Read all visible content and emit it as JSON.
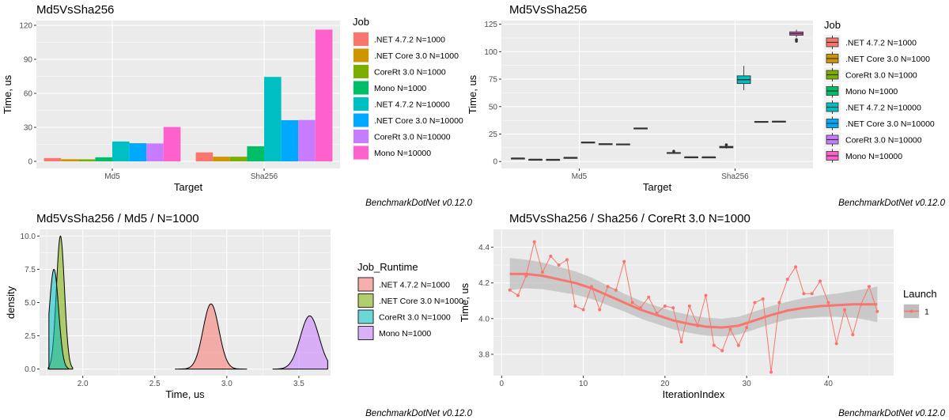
{
  "colors": {
    "panel_bg": "#ebebeb",
    "grid_major": "#ffffff",
    "jobs": [
      "#f8766d",
      "#cd9600",
      "#7cae00",
      "#00be67",
      "#00bfc4",
      "#00a9ff",
      "#c77cff",
      "#ff61cc"
    ],
    "density": [
      "#f8766d",
      "#7cae00",
      "#00bfc4",
      "#c77cff"
    ],
    "trend_line": "#f8766d",
    "trend_band": "#bebebe"
  },
  "chart_data": [
    {
      "type": "bar",
      "title": "Md5VsSha256",
      "xlabel": "Target",
      "ylabel": "Time, us",
      "categories": [
        "Md5",
        "Sha256"
      ],
      "ylim": [
        0,
        120
      ],
      "yticks": [
        0,
        30,
        60,
        90,
        120
      ],
      "legend_title": "Job",
      "legend_position": "right",
      "series": [
        {
          "name": ".NET 4.7.2 N=1000",
          "values": [
            2.9,
            7.9
          ]
        },
        {
          "name": ".NET Core 3.0 N=1000",
          "values": [
            1.9,
            4.1
          ]
        },
        {
          "name": "CoreRt 3.0 N=1000",
          "values": [
            1.8,
            4.1
          ]
        },
        {
          "name": "Mono N=1000",
          "values": [
            3.6,
            13.3
          ]
        },
        {
          "name": ".NET 4.7.2 N=10000",
          "values": [
            17.5,
            74.5
          ]
        },
        {
          "name": ".NET Core 3.0 N=10000",
          "values": [
            16.0,
            36.3
          ]
        },
        {
          "name": "CoreRt 3.0 N=10000",
          "values": [
            15.8,
            36.5
          ]
        },
        {
          "name": "Mono N=10000",
          "values": [
            30.3,
            116.2
          ]
        }
      ],
      "footnote": "BenchmarkDotNet v0.12.0"
    },
    {
      "type": "box",
      "title": "Md5VsSha256",
      "xlabel": "Target",
      "ylabel": "Time, us",
      "categories": [
        "Md5",
        "Sha256"
      ],
      "ylim": [
        -2,
        124
      ],
      "yticks": [
        0,
        25,
        50,
        75,
        100,
        125
      ],
      "legend_title": "Job",
      "legend_position": "right",
      "series": [
        {
          "name": ".NET 4.7.2 N=1000",
          "boxes": [
            {
              "min": 2.8,
              "q1": 2.9,
              "median": 3.0,
              "q3": 3.1,
              "max": 3.2,
              "outliers": []
            },
            {
              "min": 7.2,
              "q1": 7.6,
              "median": 7.9,
              "q3": 8.2,
              "max": 8.6,
              "outliers": [
                9.4
              ]
            }
          ]
        },
        {
          "name": ".NET Core 3.0 N=1000",
          "boxes": [
            {
              "min": 1.8,
              "q1": 1.85,
              "median": 1.9,
              "q3": 1.95,
              "max": 2.0,
              "outliers": []
            },
            {
              "min": 3.9,
              "q1": 4.0,
              "median": 4.1,
              "q3": 4.2,
              "max": 4.3,
              "outliers": []
            }
          ]
        },
        {
          "name": "CoreRt 3.0 N=1000",
          "boxes": [
            {
              "min": 1.7,
              "q1": 1.75,
              "median": 1.8,
              "q3": 1.85,
              "max": 1.9,
              "outliers": []
            },
            {
              "min": 3.8,
              "q1": 3.95,
              "median": 4.05,
              "q3": 4.15,
              "max": 4.4,
              "outliers": []
            }
          ]
        },
        {
          "name": "Mono N=1000",
          "boxes": [
            {
              "min": 3.4,
              "q1": 3.5,
              "median": 3.6,
              "q3": 3.7,
              "max": 3.8,
              "outliers": []
            },
            {
              "min": 11.8,
              "q1": 12.5,
              "median": 13.2,
              "q3": 13.8,
              "max": 14.6,
              "outliers": [
                15.2
              ]
            }
          ]
        },
        {
          "name": ".NET 4.7.2 N=10000",
          "boxes": [
            {
              "min": 17.0,
              "q1": 17.3,
              "median": 17.5,
              "q3": 17.7,
              "max": 18.0,
              "outliers": []
            },
            {
              "min": 65.0,
              "q1": 71.0,
              "median": 74.5,
              "q3": 78.0,
              "max": 87.0,
              "outliers": []
            }
          ]
        },
        {
          "name": ".NET Core 3.0 N=10000",
          "boxes": [
            {
              "min": 15.6,
              "q1": 15.8,
              "median": 16.0,
              "q3": 16.2,
              "max": 16.4,
              "outliers": []
            },
            {
              "min": 35.8,
              "q1": 36.1,
              "median": 36.3,
              "q3": 36.5,
              "max": 36.8,
              "outliers": []
            }
          ]
        },
        {
          "name": "CoreRt 3.0 N=10000",
          "boxes": [
            {
              "min": 15.4,
              "q1": 15.6,
              "median": 15.8,
              "q3": 16.0,
              "max": 16.2,
              "outliers": []
            },
            {
              "min": 36.0,
              "q1": 36.3,
              "median": 36.5,
              "q3": 36.7,
              "max": 37.0,
              "outliers": []
            }
          ]
        },
        {
          "name": "Mono N=10000",
          "boxes": [
            {
              "min": 29.9,
              "q1": 30.1,
              "median": 30.3,
              "q3": 30.5,
              "max": 30.7,
              "outliers": []
            },
            {
              "min": 113.0,
              "q1": 115.0,
              "median": 116.5,
              "q3": 118.0,
              "max": 120.0,
              "outliers": [
                109.5,
                111.0
              ]
            }
          ]
        }
      ],
      "footnote": "BenchmarkDotNet v0.12.0"
    },
    {
      "type": "density",
      "title": "Md5VsSha256 / Md5 / N=1000",
      "xlabel": "Time, us",
      "ylabel": "density",
      "xlim": [
        1.7,
        3.72
      ],
      "ylim": [
        -0.5,
        10.5
      ],
      "xticks": [
        2.0,
        2.5,
        3.0,
        3.5
      ],
      "xtick_labels": [
        "2.0",
        "2.5",
        "3.0",
        "3.5"
      ],
      "yticks": [
        0,
        2.5,
        5,
        7.5,
        10
      ],
      "ytick_labels": [
        "0.0",
        "2.5",
        "5.0",
        "7.5",
        "10.0"
      ],
      "legend_title": "Job_Runtime",
      "legend_position": "right",
      "series": [
        {
          "name": ".NET 4.7.2 N=1000",
          "mean": 2.89,
          "sd": 0.055,
          "peak": 4.9,
          "range": [
            2.64,
            3.14
          ]
        },
        {
          "name": ".NET Core 3.0 N=1000",
          "mean": 1.845,
          "sd": 0.028,
          "peak": 10.0,
          "range": [
            1.76,
            1.93
          ]
        },
        {
          "name": "CoreRt 3.0 N=1000",
          "mean": 1.8,
          "sd": 0.032,
          "peak": 7.5,
          "range": [
            1.765,
            1.9
          ]
        },
        {
          "name": "Mono N=1000",
          "mean": 3.575,
          "sd": 0.065,
          "peak": 4.0,
          "range": [
            3.32,
            3.7
          ]
        }
      ],
      "footnote": "BenchmarkDotNet v0.12.0"
    },
    {
      "type": "line",
      "title": "Md5VsSha256 / Sha256 / CoreRt 3.0 N=1000",
      "xlabel": "IterationIndex",
      "ylabel": "Time, us",
      "xlim": [
        -1,
        48
      ],
      "ylim": [
        3.68,
        4.5
      ],
      "xticks": [
        0,
        10,
        20,
        30,
        40
      ],
      "yticks": [
        3.8,
        4.0,
        4.2,
        4.4
      ],
      "ytick_labels": [
        "3.8",
        "4.0",
        "4.2",
        "4.4"
      ],
      "legend_title": "Launch",
      "legend_position": "right",
      "series": [
        {
          "name": "1",
          "x": [
            1,
            2,
            3,
            4,
            5,
            6,
            7,
            8,
            9,
            10,
            11,
            12,
            13,
            14,
            15,
            16,
            17,
            18,
            19,
            20,
            21,
            22,
            23,
            24,
            25,
            26,
            27,
            28,
            29,
            30,
            31,
            32,
            33,
            34,
            35,
            36,
            37,
            38,
            39,
            40,
            41,
            42,
            43,
            44,
            45,
            46
          ],
          "y": [
            4.16,
            4.13,
            4.24,
            4.43,
            4.26,
            4.35,
            4.3,
            4.33,
            4.07,
            4.05,
            4.18,
            4.05,
            4.18,
            4.16,
            4.32,
            4.09,
            4.06,
            4.12,
            4.03,
            4.07,
            4.06,
            3.87,
            4.07,
            3.96,
            4.13,
            3.85,
            3.82,
            3.94,
            3.85,
            3.95,
            4.09,
            4.11,
            3.7,
            4.09,
            4.22,
            4.29,
            4.14,
            4.14,
            4.21,
            4.09,
            3.86,
            4.05,
            3.91,
            4.08,
            4.18,
            4.04
          ]
        }
      ],
      "smooth": {
        "x": [
          1,
          3,
          5,
          7,
          9,
          11,
          13,
          15,
          17,
          19,
          21,
          23,
          25,
          27,
          29,
          31,
          33,
          35,
          37,
          39,
          41,
          43,
          45,
          46
        ],
        "y": [
          4.25,
          4.25,
          4.24,
          4.22,
          4.2,
          4.17,
          4.13,
          4.09,
          4.05,
          4.02,
          3.99,
          3.97,
          3.955,
          3.95,
          3.96,
          3.99,
          4.02,
          4.045,
          4.06,
          4.07,
          4.075,
          4.08,
          4.08,
          4.08
        ],
        "band": [
          0.09,
          0.08,
          0.075,
          0.07,
          0.065,
          0.06,
          0.055,
          0.05,
          0.05,
          0.05,
          0.05,
          0.05,
          0.05,
          0.05,
          0.05,
          0.05,
          0.05,
          0.05,
          0.055,
          0.06,
          0.065,
          0.075,
          0.09,
          0.1
        ]
      },
      "footnote": "BenchmarkDotNet v0.12.0"
    }
  ]
}
